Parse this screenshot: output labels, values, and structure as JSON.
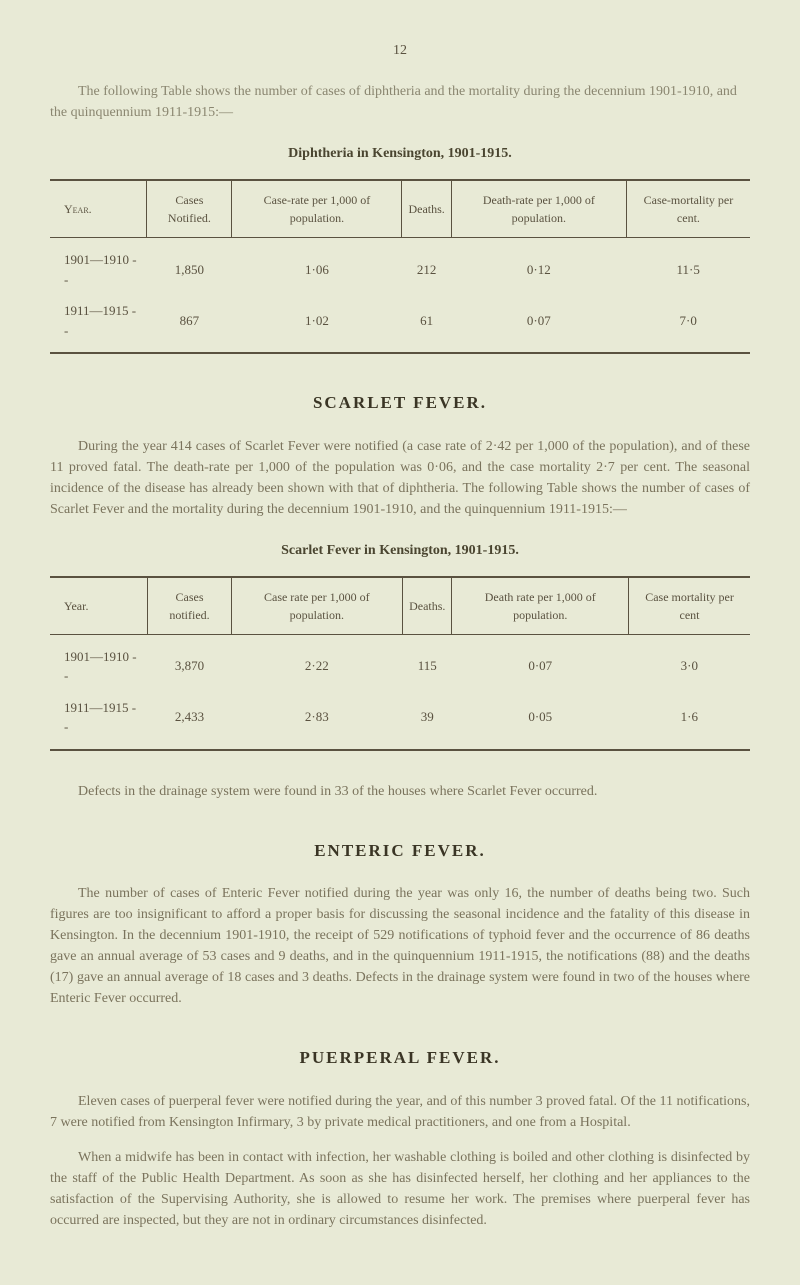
{
  "page_number": "12",
  "intro_diphtheria": "The following Table shows the number of cases of diphtheria and the mortality during the decennium 1901-1910, and the quinquennium 1911-1915:—",
  "diphtheria_table": {
    "title": "Diphtheria in Kensington, 1901-1915.",
    "columns": [
      "Year.",
      "Cases Notified.",
      "Case-rate per 1,000 of population.",
      "Deaths.",
      "Death-rate per 1,000 of population.",
      "Case-mortality per cent."
    ],
    "rows": [
      [
        "1901—1910   -   -",
        "1,850",
        "1·06",
        "212",
        "0·12",
        "11·5"
      ],
      [
        "1911—1915   -   -",
        "867",
        "1·02",
        "61",
        "0·07",
        "7·0"
      ]
    ]
  },
  "scarlet_fever": {
    "heading": "SCARLET FEVER.",
    "para": "During the year 414 cases of Scarlet Fever were notified (a case rate of 2·42 per 1,000 of the population), and of these 11 proved fatal. The death-rate per 1,000 of the population was 0·06, and the case mortality 2·7 per cent. The seasonal incidence of the disease has already been shown with that of diphtheria. The following Table shows the number of cases of Scarlet Fever and the mortality during the decennium 1901-1910, and the quinquennium 1911-1915:—",
    "table": {
      "title": "Scarlet Fever in Kensington, 1901-1915.",
      "columns": [
        "Year.",
        "Cases notified.",
        "Case rate per 1,000 of population.",
        "Deaths.",
        "Death rate per 1,000 of population.",
        "Case mortality per cent"
      ],
      "rows": [
        [
          "1901—1910   -   -",
          "3,870",
          "2·22",
          "115",
          "0·07",
          "3·0"
        ],
        [
          "1911—1915   -   -",
          "2,433",
          "2·83",
          "39",
          "0·05",
          "1·6"
        ]
      ]
    },
    "defects_para": "Defects in the drainage system were found in 33 of the houses where Scarlet Fever occurred."
  },
  "enteric_fever": {
    "heading": "ENTERIC FEVER.",
    "para": "The number of cases of Enteric Fever notified during the year was only 16, the number of deaths being two. Such figures are too insignificant to afford a proper basis for discussing the seasonal incidence and the fatality of this disease in Kensington. In the decennium 1901-1910, the receipt of 529 notifications of typhoid fever and the occurrence of 86 deaths gave an annual average of 53 cases and 9 deaths, and in the quinquennium 1911-1915, the notifications (88) and the deaths (17) gave an annual average of 18 cases and 3 deaths. Defects in the drainage system were found in two of the houses where Enteric Fever occurred."
  },
  "puerperal_fever": {
    "heading": "PUERPERAL FEVER.",
    "para1": "Eleven cases of puerperal fever were notified during the year, and of this number 3 proved fatal. Of the 11 notifications, 7 were notified from Kensington Infirmary, 3 by private medical practitioners, and one from a Hospital.",
    "para2": "When a midwife has been in contact with infection, her washable clothing is boiled and other clothing is disinfected by the staff of the Public Health Department. As soon as she has disinfected herself, her clothing and her appliances to the satisfaction of the Supervising Authority, she is allowed to resume her work. The premises where puerperal fever has occurred are inspected, but they are not in ordinary circumstances disinfected."
  }
}
